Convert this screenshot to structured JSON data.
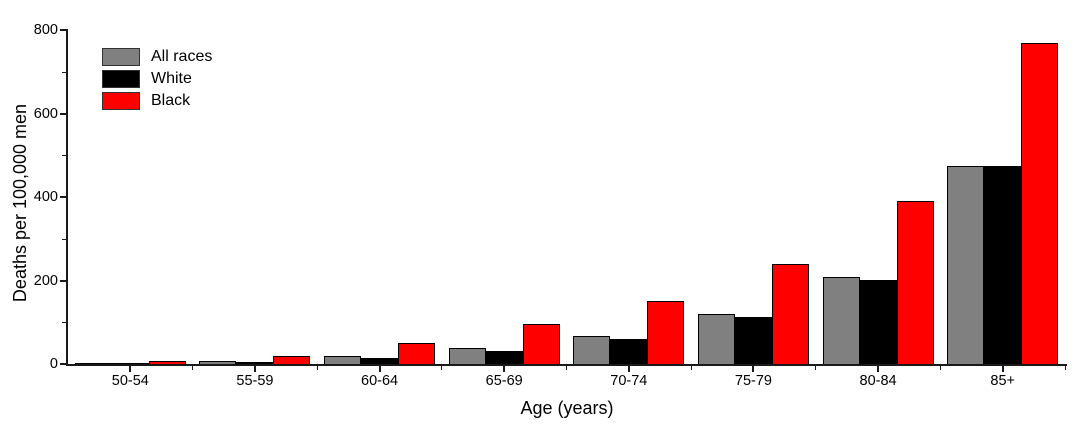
{
  "chart_data": {
    "type": "bar",
    "title": "",
    "xlabel": "Age (years)",
    "ylabel": "Deaths per 100,000 men",
    "categories": [
      "50-54",
      "55-59",
      "60-64",
      "65-69",
      "70-74",
      "75-79",
      "80-84",
      "85+"
    ],
    "series": [
      {
        "name": "All races",
        "color": "#808080",
        "values": [
          3,
          8,
          20,
          38,
          66,
          119,
          209,
          475
        ]
      },
      {
        "name": "White",
        "color": "#000000",
        "values": [
          2,
          5,
          15,
          32,
          61,
          112,
          202,
          474
        ]
      },
      {
        "name": "Black",
        "color": "#ff0000",
        "values": [
          7,
          19,
          50,
          96,
          151,
          240,
          390,
          768
        ]
      }
    ],
    "ylim": [
      0,
      800
    ],
    "yticks_major": [
      0,
      200,
      400,
      600,
      800
    ],
    "yticks_minor": [
      100,
      300,
      500,
      700
    ],
    "legend_position": "top-left",
    "grid": false,
    "axis_color": "#1a1a1a",
    "background_color": "#ffffff"
  }
}
